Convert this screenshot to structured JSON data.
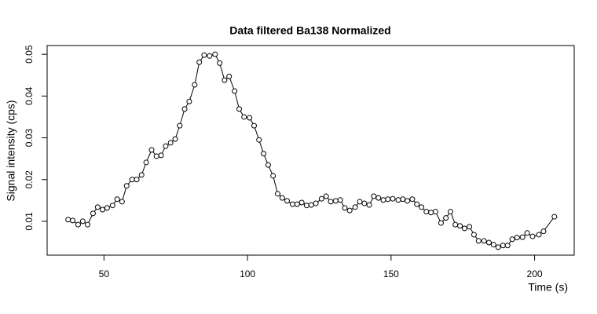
{
  "chart_data": {
    "type": "line",
    "title": "Data filtered Ba138 Normalized",
    "x_label": "Time (s)",
    "y_label": "Signal intensity (cps)",
    "x": [
      37.5,
      39.1,
      41.0,
      42.6,
      44.3,
      46.2,
      47.8,
      49.5,
      51.1,
      53.0,
      54.6,
      56.3,
      57.9,
      59.8,
      61.4,
      63.1,
      64.7,
      66.6,
      68.3,
      69.9,
      71.5,
      73.2,
      74.8,
      76.4,
      78.1,
      79.7,
      81.6,
      83.2,
      84.9,
      86.8,
      88.7,
      90.3,
      92.0,
      93.6,
      95.5,
      97.1,
      98.8,
      100.7,
      102.3,
      104.0,
      105.6,
      107.2,
      108.9,
      110.5,
      112.1,
      113.8,
      115.7,
      117.3,
      118.9,
      120.6,
      122.2,
      123.8,
      125.8,
      127.4,
      129.0,
      130.7,
      132.3,
      133.9,
      135.6,
      137.5,
      139.1,
      140.7,
      142.4,
      144.0,
      145.6,
      147.3,
      148.9,
      150.6,
      152.5,
      154.1,
      155.7,
      157.4,
      159.0,
      160.6,
      162.3,
      163.9,
      165.5,
      167.4,
      169.1,
      170.7,
      172.4,
      174.0,
      175.6,
      177.3,
      178.9,
      180.5,
      182.4,
      184.1,
      185.7,
      187.3,
      189.0,
      190.6,
      192.2,
      193.9,
      195.8,
      197.4,
      199.3,
      201.5,
      203.1,
      206.9
    ],
    "series": [
      {
        "color": "#000000",
        "values": [
          0.0104,
          0.0102,
          0.0092,
          0.01,
          0.0092,
          0.0119,
          0.0134,
          0.0128,
          0.0132,
          0.0138,
          0.0153,
          0.0147,
          0.0185,
          0.02,
          0.02,
          0.0211,
          0.0241,
          0.0271,
          0.0256,
          0.0258,
          0.028,
          0.0288,
          0.0297,
          0.0329,
          0.0369,
          0.0387,
          0.0427,
          0.0481,
          0.0498,
          0.0496,
          0.05,
          0.0479,
          0.0438,
          0.0447,
          0.0412,
          0.0369,
          0.035,
          0.0348,
          0.0329,
          0.0295,
          0.0262,
          0.0235,
          0.0209,
          0.0166,
          0.0156,
          0.0149,
          0.0141,
          0.0141,
          0.0145,
          0.0138,
          0.0139,
          0.0143,
          0.0154,
          0.016,
          0.0147,
          0.0149,
          0.0151,
          0.0132,
          0.0126,
          0.0134,
          0.0147,
          0.0143,
          0.0139,
          0.016,
          0.0156,
          0.0151,
          0.0153,
          0.0154,
          0.0151,
          0.0153,
          0.0149,
          0.0153,
          0.0141,
          0.0134,
          0.0123,
          0.0121,
          0.0123,
          0.0096,
          0.0108,
          0.0123,
          0.0092,
          0.0089,
          0.0083,
          0.0087,
          0.0068,
          0.0053,
          0.0053,
          0.0049,
          0.0044,
          0.0038,
          0.0042,
          0.0042,
          0.0057,
          0.0061,
          0.0062,
          0.0072,
          0.0064,
          0.0068,
          0.0076,
          0.0111
        ]
      }
    ],
    "xlim": [
      30.2,
      213.8
    ],
    "ylim": [
      0.0019,
      0.0521
    ],
    "xticks": [
      50,
      100,
      150,
      200
    ],
    "yticks": [
      0.01,
      0.02,
      0.03,
      0.04,
      0.05
    ]
  }
}
